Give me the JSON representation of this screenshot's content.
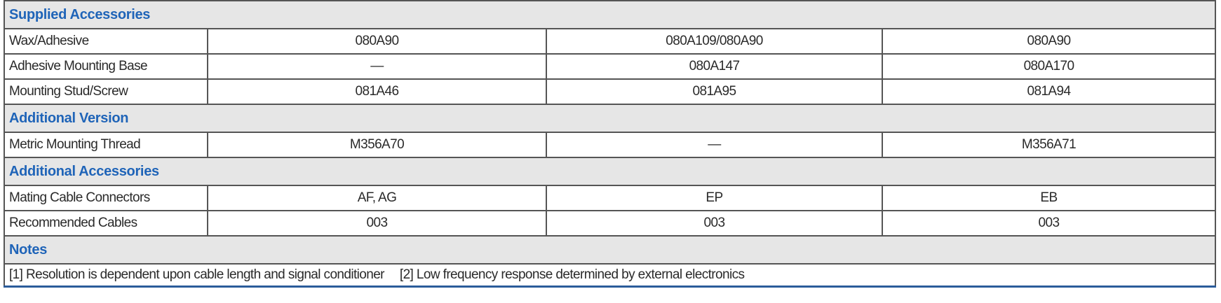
{
  "sections": {
    "supplied": "Supplied Accessories",
    "version": "Additional Version",
    "additional": "Additional Accessories",
    "notes": "Notes"
  },
  "supplied_rows": [
    {
      "label": "Wax/Adhesive",
      "values": [
        "080A90",
        "080A109/080A90",
        "080A90"
      ]
    },
    {
      "label": "Adhesive Mounting Base",
      "values": [
        "—",
        "080A147",
        "080A170"
      ]
    },
    {
      "label": "Mounting Stud/Screw",
      "values": [
        "081A46",
        "081A95",
        "081A94"
      ]
    }
  ],
  "version_rows": [
    {
      "label": "Metric Mounting Thread",
      "values": [
        "M356A70",
        "—",
        "M356A71"
      ]
    }
  ],
  "additional_rows": [
    {
      "label": "Mating Cable Connectors",
      "values": [
        "AF, AG",
        "EP",
        "EB"
      ]
    },
    {
      "label": "Recommended Cables",
      "values": [
        "003",
        "003",
        "003"
      ]
    }
  ],
  "notes": [
    "[1] Resolution is dependent upon cable length and signal conditioner",
    "[2] Low frequency response determined by external electronics"
  ],
  "colors": {
    "section_text": "#1f64b8",
    "section_bg": "#e6e6e6",
    "frame": "#2b5c9a"
  }
}
